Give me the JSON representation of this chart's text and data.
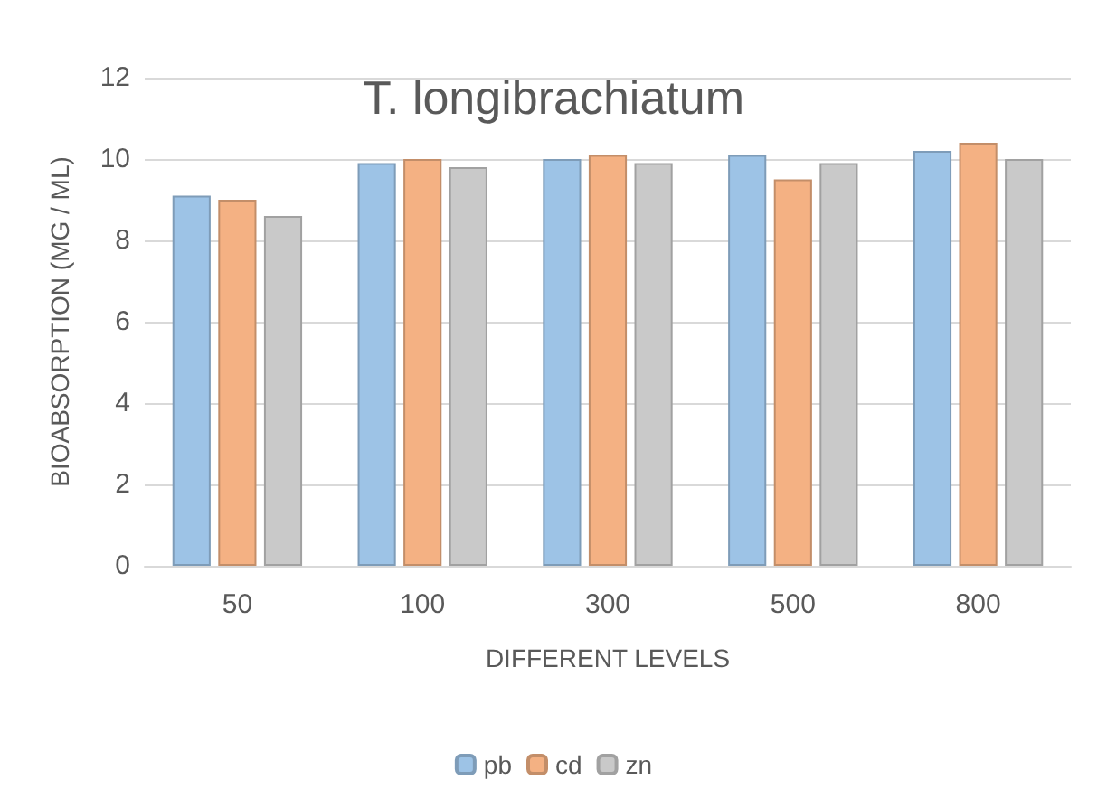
{
  "chart_data": {
    "type": "bar",
    "title": "T. longibrachiatum",
    "xlabel": "DIFFERENT LEVELS",
    "ylabel": "BIOABSORPTION (MG / ML)",
    "categories": [
      "50",
      "100",
      "300",
      "500",
      "800"
    ],
    "series": [
      {
        "name": "pb",
        "color": "#9dc3e6",
        "values": [
          9.1,
          9.9,
          10.0,
          10.1,
          10.2
        ]
      },
      {
        "name": "cd",
        "color": "#f4b183",
        "values": [
          9.0,
          10.0,
          10.1,
          9.5,
          10.4
        ]
      },
      {
        "name": "zn",
        "color": "#c9c9c9",
        "values": [
          8.6,
          9.8,
          9.9,
          9.9,
          10.0
        ]
      }
    ],
    "ylim": [
      0,
      12
    ],
    "yticks": [
      0,
      2,
      4,
      6,
      8,
      10,
      12
    ],
    "grid": "y",
    "legend": "bottom"
  }
}
